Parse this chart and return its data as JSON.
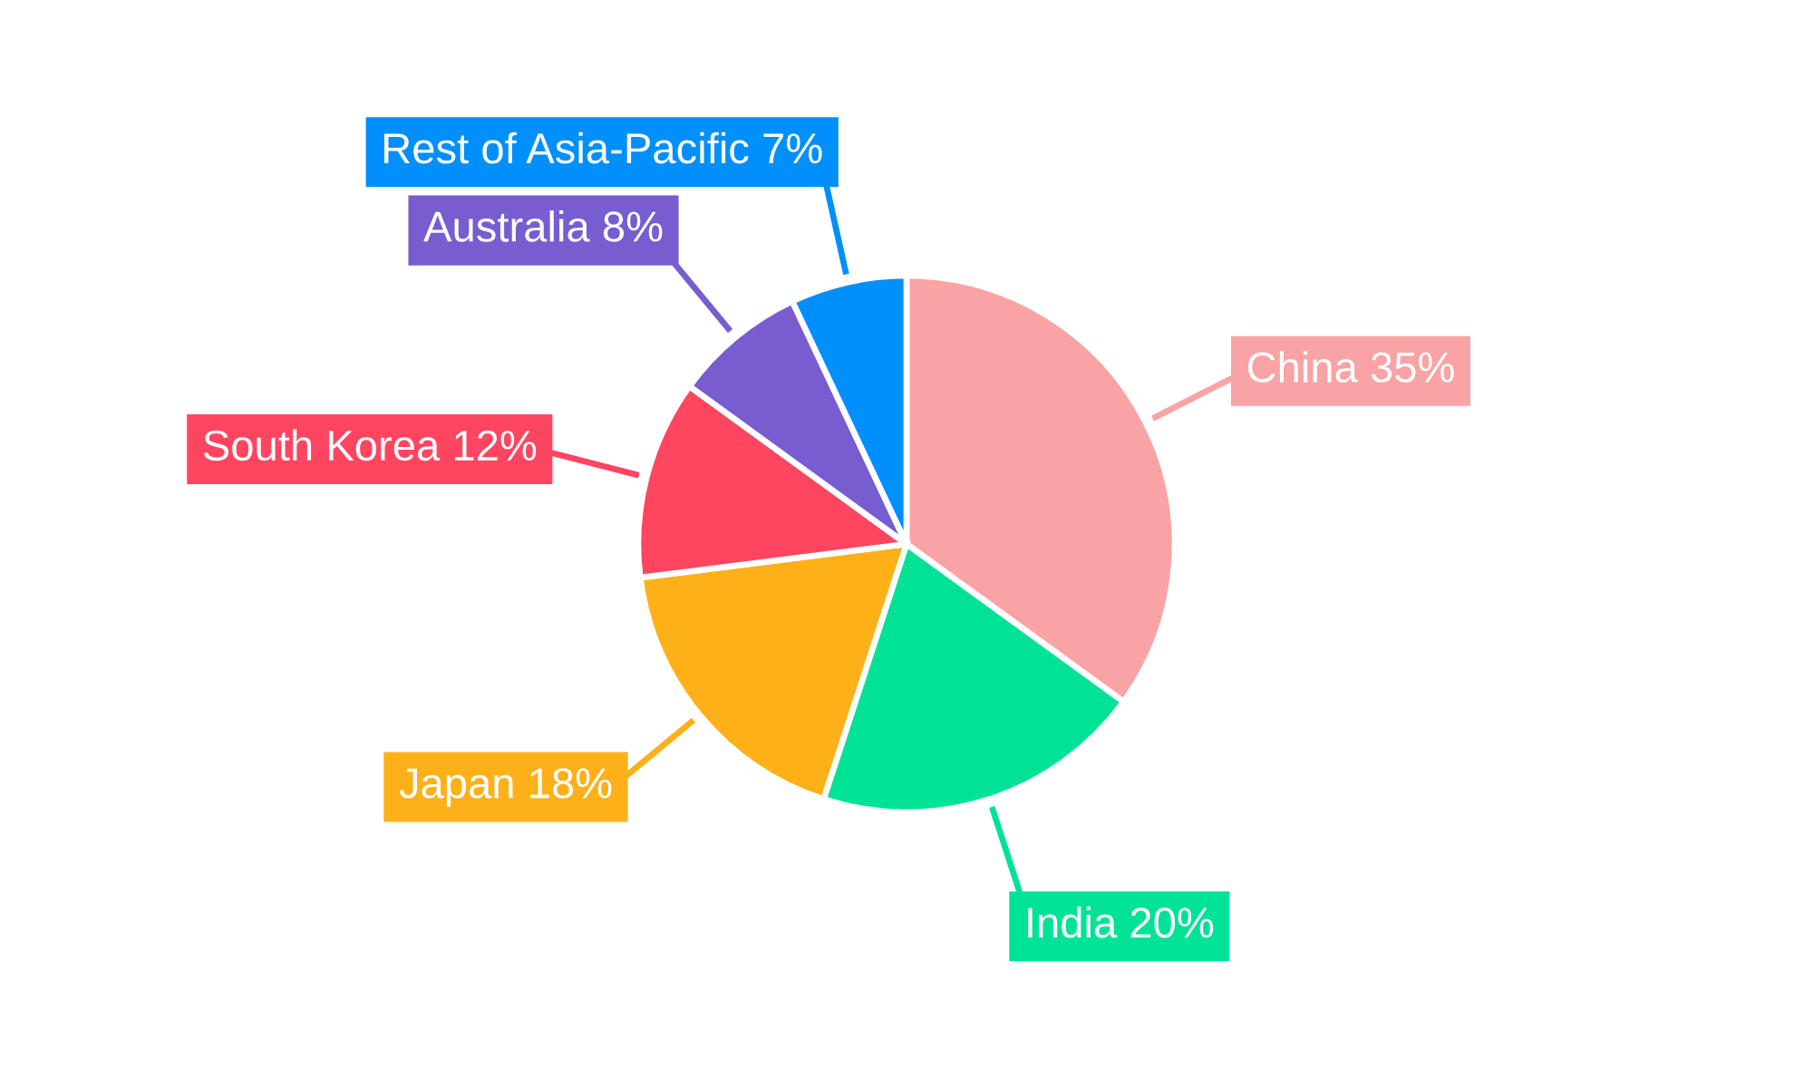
{
  "chart_data": {
    "type": "pie",
    "categories": [
      "China",
      "India",
      "Japan",
      "South Korea",
      "Australia",
      "Rest of Asia-Pacific"
    ],
    "values": [
      35,
      20,
      18,
      12,
      8,
      7
    ],
    "colors": [
      "#f9a3a4",
      "#00e396",
      "#feb019",
      "#ff4560",
      "#775dd0",
      "#008ffb"
    ],
    "value_labels": [
      "35%",
      "20%",
      "18%",
      "12%",
      "8%",
      "7%"
    ]
  }
}
